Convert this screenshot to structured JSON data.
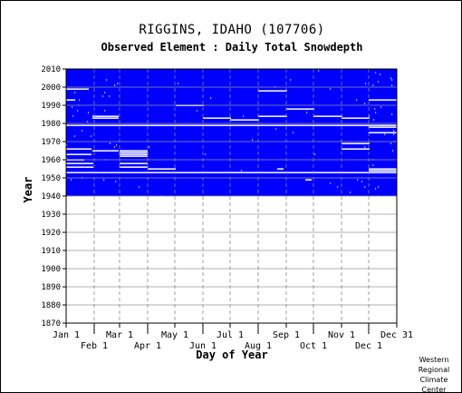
{
  "header": {
    "title": "RIGGINS, IDAHO   (107706)",
    "subtitle": "Observed Element : Daily Total Snowdepth"
  },
  "footer": [
    "Western",
    "Regional",
    "Climate",
    "Center"
  ],
  "chart_data": {
    "type": "heatmap",
    "title": "RIGGINS, IDAHO   (107706)",
    "subtitle": "Observed Element : Daily Total Snowdepth",
    "xlabel": "Day of Year",
    "ylabel": "Year",
    "xlim": [
      1,
      365
    ],
    "ylim": [
      1870,
      2010
    ],
    "x_ticks_top_row": [
      {
        "label": "Jan 1",
        "day": 1
      },
      {
        "label": "Mar 1",
        "day": 60
      },
      {
        "label": "May 1",
        "day": 121
      },
      {
        "label": "Jul 1",
        "day": 182
      },
      {
        "label": "Sep 1",
        "day": 244
      },
      {
        "label": "Nov 1",
        "day": 305
      },
      {
        "label": "Dec 31",
        "day": 365
      }
    ],
    "x_ticks_bottom_row": [
      {
        "label": "Feb 1",
        "day": 32
      },
      {
        "label": "Apr 1",
        "day": 91
      },
      {
        "label": "Jun 1",
        "day": 152
      },
      {
        "label": "Aug 1",
        "day": 213
      },
      {
        "label": "Oct 1",
        "day": 274
      },
      {
        "label": "Dec 1",
        "day": 335
      }
    ],
    "y_ticks": [
      1870,
      1880,
      1890,
      1900,
      1910,
      1920,
      1930,
      1940,
      1950,
      1960,
      1970,
      1980,
      1990,
      2000,
      2010
    ],
    "grid": true,
    "data_color": "#0000ff",
    "missing_color": "#ffffff",
    "observed_period": {
      "year_start": 1940,
      "year_end": 2010,
      "day_start": 1,
      "day_end": 365
    },
    "missing_full_years": [
      1953,
      1979
    ],
    "missing_segments": [
      {
        "year": 1999,
        "day_start": 1,
        "day_end": 25
      },
      {
        "year": 1993,
        "day_start": 1,
        "day_end": 10
      },
      {
        "year": 1983,
        "day_start": 30,
        "day_end": 58
      },
      {
        "year": 1984,
        "day_start": 30,
        "day_end": 58
      },
      {
        "year": 1990,
        "day_start": 122,
        "day_end": 152
      },
      {
        "year": 1998,
        "day_start": 213,
        "day_end": 244
      },
      {
        "year": 1983,
        "day_start": 152,
        "day_end": 182
      },
      {
        "year": 1982,
        "day_start": 182,
        "day_end": 213
      },
      {
        "year": 1984,
        "day_start": 213,
        "day_end": 244
      },
      {
        "year": 1988,
        "day_start": 244,
        "day_end": 274
      },
      {
        "year": 1984,
        "day_start": 274,
        "day_end": 305
      },
      {
        "year": 1983,
        "day_start": 305,
        "day_end": 335
      },
      {
        "year": 1993,
        "day_start": 335,
        "day_end": 365
      },
      {
        "year": 1978,
        "day_start": 335,
        "day_end": 365
      },
      {
        "year": 1975,
        "day_start": 335,
        "day_end": 365
      },
      {
        "year": 1966,
        "day_start": 1,
        "day_end": 28
      },
      {
        "year": 1963,
        "day_start": 1,
        "day_end": 28
      },
      {
        "year": 1960,
        "day_start": 1,
        "day_end": 20
      },
      {
        "year": 1958,
        "day_start": 1,
        "day_end": 30
      },
      {
        "year": 1956,
        "day_start": 1,
        "day_end": 30
      },
      {
        "year": 1965,
        "day_start": 60,
        "day_end": 90
      },
      {
        "year": 1964,
        "day_start": 60,
        "day_end": 90
      },
      {
        "year": 1963,
        "day_start": 60,
        "day_end": 90
      },
      {
        "year": 1962,
        "day_start": 60,
        "day_end": 90
      },
      {
        "year": 1958,
        "day_start": 60,
        "day_end": 90
      },
      {
        "year": 1956,
        "day_start": 60,
        "day_end": 90
      },
      {
        "year": 1955,
        "day_start": 91,
        "day_end": 121
      },
      {
        "year": 1965,
        "day_start": 30,
        "day_end": 58
      },
      {
        "year": 1955,
        "day_start": 335,
        "day_end": 365
      },
      {
        "year": 1954,
        "day_start": 335,
        "day_end": 365
      },
      {
        "year": 1966,
        "day_start": 305,
        "day_end": 335
      },
      {
        "year": 1969,
        "day_start": 305,
        "day_end": 335
      },
      {
        "year": 1955,
        "day_start": 234,
        "day_end": 240
      },
      {
        "year": 1949,
        "day_start": 265,
        "day_end": 271
      }
    ]
  }
}
